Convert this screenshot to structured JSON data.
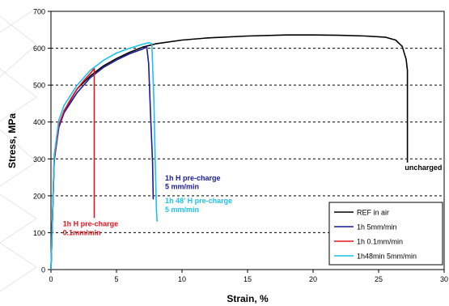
{
  "chart_data": {
    "type": "line",
    "xlabel": "Strain, %",
    "ylabel": "Stress, MPa",
    "xlim": [
      0,
      30
    ],
    "ylim": [
      0,
      700
    ],
    "x_ticks": [
      0,
      5,
      10,
      15,
      20,
      25,
      30
    ],
    "y_ticks": [
      0,
      100,
      200,
      300,
      400,
      500,
      600,
      700
    ],
    "grid": "horizontal dashed",
    "legend_placement": "bottom-right",
    "series": [
      {
        "name": "REF in air",
        "color": "#000000",
        "points": [
          [
            0,
            0
          ],
          [
            0.25,
            300
          ],
          [
            0.6,
            390
          ],
          [
            1,
            430
          ],
          [
            2,
            490
          ],
          [
            3,
            525
          ],
          [
            4,
            552
          ],
          [
            5,
            572
          ],
          [
            6,
            589
          ],
          [
            7,
            603
          ],
          [
            8,
            612
          ],
          [
            10,
            622
          ],
          [
            12,
            628
          ],
          [
            15,
            633
          ],
          [
            18,
            636
          ],
          [
            20,
            636
          ],
          [
            22,
            635
          ],
          [
            24,
            633
          ],
          [
            25.5,
            630
          ],
          [
            26.3,
            622
          ],
          [
            26.8,
            605
          ],
          [
            27.1,
            570
          ],
          [
            27.2,
            540
          ],
          [
            27.2,
            420
          ],
          [
            27.2,
            360
          ],
          [
            27.2,
            290
          ]
        ]
      },
      {
        "name": "1h 5mm/min",
        "color": "#1a1a9e",
        "points": [
          [
            0,
            0
          ],
          [
            0.25,
            295
          ],
          [
            0.6,
            385
          ],
          [
            1,
            425
          ],
          [
            2,
            480
          ],
          [
            3,
            520
          ],
          [
            4,
            548
          ],
          [
            5,
            568
          ],
          [
            6,
            585
          ],
          [
            7,
            598
          ],
          [
            7.3,
            605
          ],
          [
            7.45,
            560
          ],
          [
            7.6,
            420
          ],
          [
            7.75,
            290
          ],
          [
            7.8,
            190
          ]
        ]
      },
      {
        "name": "1h 0.1mm/min",
        "color": "#e8141c",
        "points": [
          [
            0,
            0
          ],
          [
            0.25,
            300
          ],
          [
            0.6,
            392
          ],
          [
            1,
            430
          ],
          [
            1.5,
            462
          ],
          [
            2,
            490
          ],
          [
            2.5,
            512
          ],
          [
            3,
            532
          ],
          [
            3.3,
            545
          ],
          [
            3.3,
            300
          ],
          [
            3.3,
            140
          ]
        ]
      },
      {
        "name": "1h48min 5mm/min",
        "color": "#1ec0f0",
        "points": [
          [
            0,
            0
          ],
          [
            0.25,
            310
          ],
          [
            0.6,
            405
          ],
          [
            1,
            445
          ],
          [
            2,
            500
          ],
          [
            3,
            540
          ],
          [
            4,
            567
          ],
          [
            5,
            587
          ],
          [
            6,
            600
          ],
          [
            7,
            611
          ],
          [
            7.5,
            615
          ],
          [
            7.7,
            612
          ],
          [
            7.85,
            460
          ],
          [
            7.95,
            300
          ],
          [
            8.05,
            160
          ],
          [
            8.1,
            130
          ]
        ]
      }
    ],
    "annotations": [
      {
        "text": "uncharged",
        "x": 27.0,
        "y": 270,
        "color": "#000000"
      },
      {
        "text": "1h H pre-charge",
        "x": 8.7,
        "y": 241,
        "color": "#1a1a9e"
      },
      {
        "text": "5 mm/min",
        "x": 8.7,
        "y": 218,
        "color": "#1a1a9e"
      },
      {
        "text": "1h 48' H pre-charge",
        "x": 8.7,
        "y": 180,
        "color": "#1ec0f0"
      },
      {
        "text": "5 mm/min",
        "x": 8.7,
        "y": 156,
        "color": "#1ec0f0"
      },
      {
        "text": "1h H pre-charge",
        "x": 0.9,
        "y": 117,
        "color": "#e8141c"
      },
      {
        "text": "0.1mm/min",
        "x": 0.9,
        "y": 93,
        "color": "#e8141c"
      }
    ]
  }
}
